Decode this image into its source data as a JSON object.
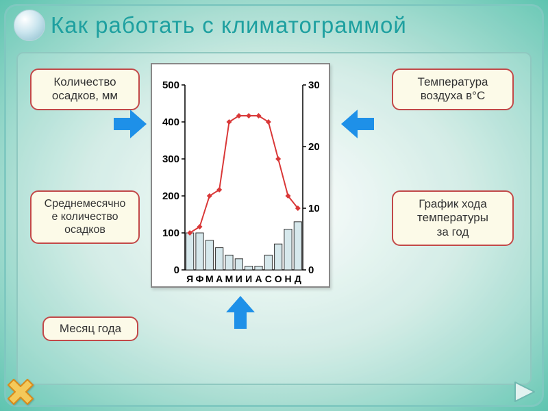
{
  "title": "Как работать с климатограммой",
  "labels": {
    "precip_axis": "Количество\nосадков, мм",
    "temp_axis": "Температура\nвоздуха в°С",
    "monthly_precip": "Среднемесячно\nе количество\nосадков",
    "temp_curve": "График хода\nтемпературы\nза год",
    "month": "Месяц года"
  },
  "chart": {
    "type": "climograph",
    "months": [
      "Я",
      "Ф",
      "М",
      "А",
      "М",
      "И",
      "И",
      "А",
      "С",
      "О",
      "Н",
      "Д"
    ],
    "precip_values": [
      100,
      100,
      80,
      60,
      40,
      30,
      10,
      10,
      40,
      70,
      110,
      130
    ],
    "temp_values": [
      6,
      7,
      12,
      13,
      24,
      25,
      25,
      25,
      24,
      18,
      12,
      10
    ],
    "left_axis": {
      "label_values": [
        0,
        100,
        200,
        300,
        400,
        500
      ],
      "min": 0,
      "max": 500
    },
    "right_axis": {
      "label_values": [
        0,
        10,
        20,
        30
      ],
      "min": 0,
      "max": 30
    },
    "bar_fill": "#d6e8ec",
    "bar_stroke": "#333333",
    "line_color": "#d93838",
    "marker_color": "#d93838",
    "tick_color": "#000000",
    "tick_fontsize": 15,
    "month_fontsize": 14,
    "bg": "#ffffff"
  },
  "colors": {
    "title": "#1ea0a0",
    "label_bg": "#fcfae8",
    "label_border": "#c24848",
    "arrow_fill": "#1e90e8",
    "frame_border": "#8fc8c0",
    "close_fill": "#f4c95a",
    "close_border": "#d98a1a",
    "next_fill": "#c8e8e8",
    "next_border": "#6fb8b0"
  }
}
